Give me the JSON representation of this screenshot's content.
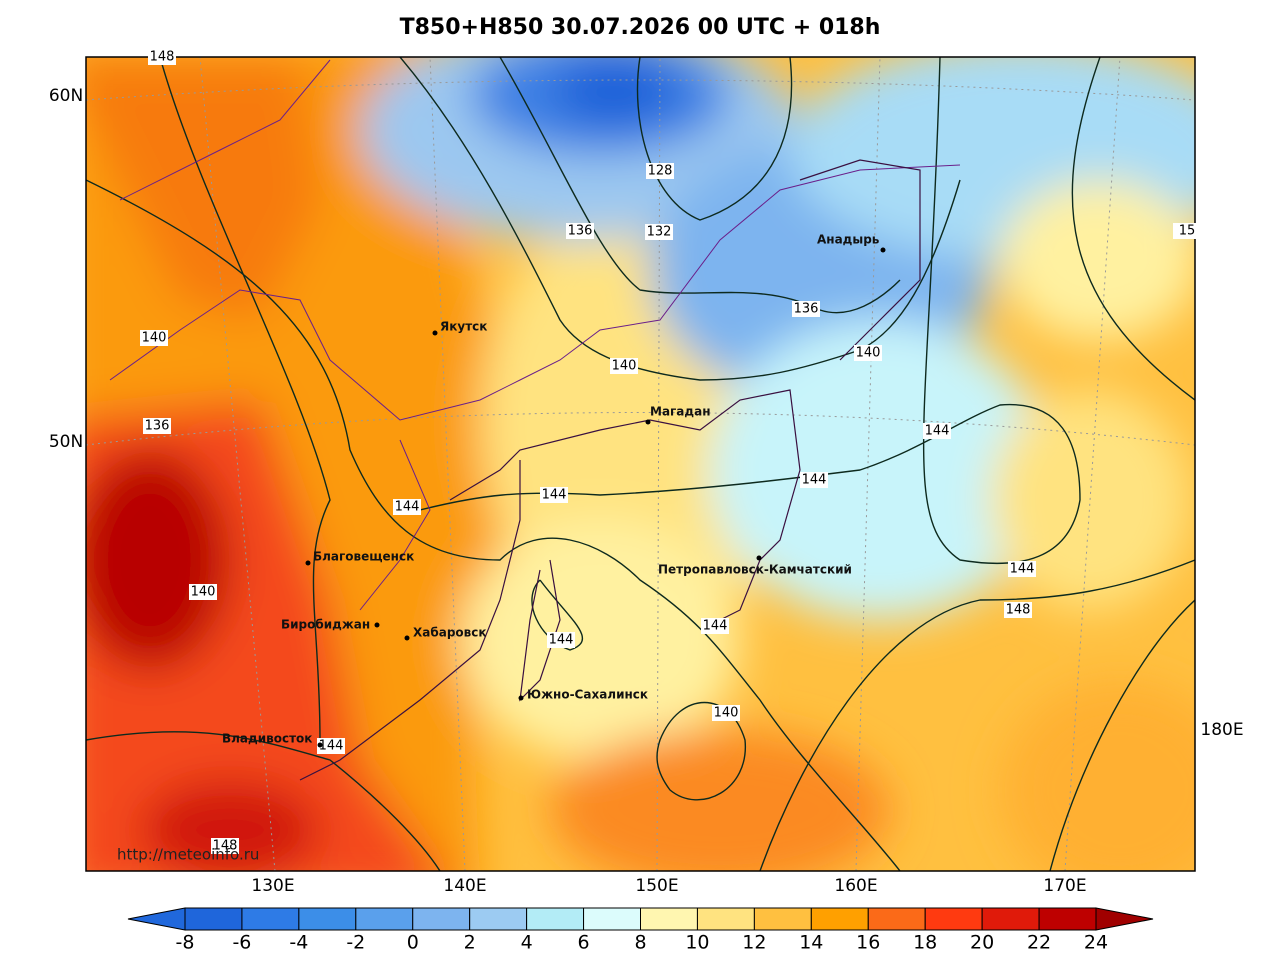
{
  "header": {
    "title": "T850+H850 30.07.2026 00 UTC + 018h"
  },
  "map": {
    "lat_labels": [
      "60N",
      "50N"
    ],
    "lon_labels": [
      "130E",
      "140E",
      "150E",
      "160E",
      "170E",
      "180E"
    ],
    "cities": [
      "Якутск",
      "Магадан",
      "Анадырь",
      "Петропавловск-Камчатский",
      "Благовещенск",
      "Биробиджан",
      "Хабаровск",
      "Южно-Сахалинск",
      "Владивосток"
    ],
    "contour_labels": [
      "128",
      "136",
      "132",
      "136",
      "140",
      "140",
      "144",
      "140",
      "136",
      "144",
      "144",
      "144",
      "140",
      "144",
      "148",
      "144",
      "144",
      "140",
      "144",
      "148",
      "148",
      "15"
    ],
    "source": "http://meteoinfo.ru"
  },
  "colorbar": {
    "ticks": [
      -8,
      -6,
      -4,
      -2,
      0,
      2,
      4,
      6,
      8,
      10,
      12,
      14,
      16,
      18,
      20,
      22,
      24
    ],
    "colors": [
      "#2068dc",
      "#1f66db",
      "#2e7be6",
      "#3c8ee8",
      "#5aa0ec",
      "#7db4ef",
      "#9ccbf2",
      "#b3ecf6",
      "#dcfcfc",
      "#fff6b0",
      "#ffe380",
      "#ffc040",
      "#ffa000",
      "#fb6a18",
      "#ff3a10",
      "#e01a0a",
      "#be0000",
      "#a00000"
    ]
  }
}
